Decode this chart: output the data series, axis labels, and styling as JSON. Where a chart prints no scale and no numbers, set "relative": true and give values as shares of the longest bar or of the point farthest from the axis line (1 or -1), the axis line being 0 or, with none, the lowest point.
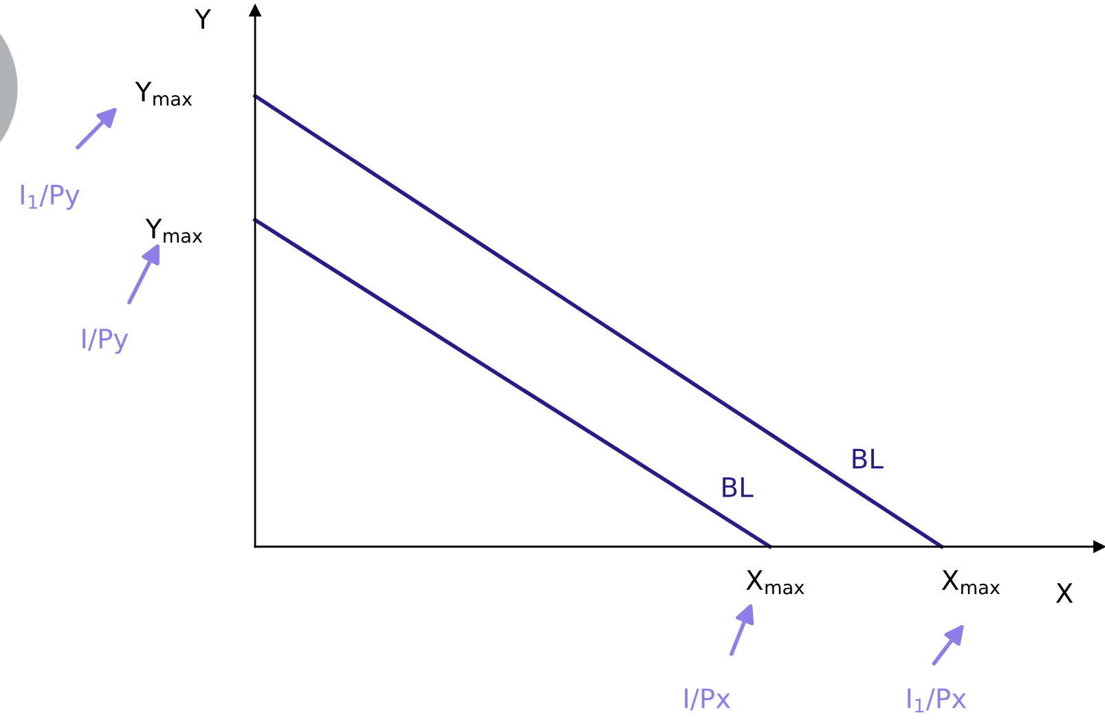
{
  "chart_data": {
    "type": "line",
    "xlabel": "X",
    "ylabel": "Y",
    "relative": true,
    "categories": [
      null,
      null,
      null,
      null,
      null
    ],
    "series": [
      {
        "name": "BL",
        "color": "#2e1a87",
        "values": [
          0.725,
          0.483,
          0.242,
          0,
          null
        ]
      },
      {
        "name": "BL",
        "color": "#2e1a87",
        "values": [
          1,
          0.75,
          0.5,
          0.25,
          0
        ]
      }
    ],
    "annotations": [
      "Y$_{max}$",
      "Y$_{max}$",
      "X$_{max}$",
      "X$_{max}$",
      "I$_{1}$/Py",
      "I/Py",
      "I/Px",
      "I$_{1}$/Px"
    ],
    "marker": "none",
    "line_style": "solid"
  }
}
